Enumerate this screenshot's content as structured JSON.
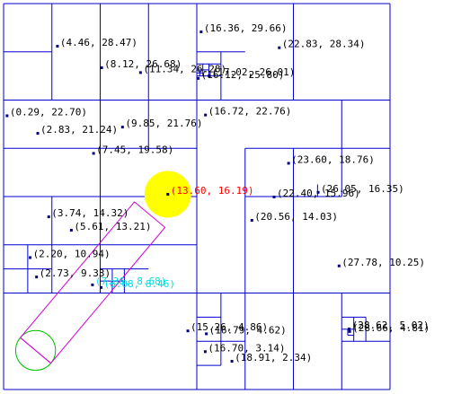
{
  "chart_data": {
    "type": "scatter",
    "xlim": [
      0,
      32
    ],
    "ylim": [
      0,
      32
    ],
    "grid": false,
    "colors": {
      "grid": "#0000d0",
      "point": "#000080",
      "label": "#000000",
      "highlight_label": "#ff0000",
      "highlight_fill": "#ffff00",
      "query_label": "#00e0e0",
      "path": "#d000d0",
      "circle": "#00c000"
    },
    "points": [
      {
        "x": 4.46,
        "y": 28.47,
        "label": "(4.46, 28.47)"
      },
      {
        "x": 16.36,
        "y": 29.66,
        "label": "(16.36, 29.66)"
      },
      {
        "x": 22.83,
        "y": 28.34,
        "label": "(22.83, 28.34)"
      },
      {
        "x": 8.12,
        "y": 26.68,
        "label": "(8.12, 26.68)"
      },
      {
        "x": 11.34,
        "y": 26.28,
        "label": "(11.34, 26.28)"
      },
      {
        "x": 17.02,
        "y": 26.01,
        "label": "(17.02, 26.01)"
      },
      {
        "x": 16.12,
        "y": 25.8,
        "label": "(16.12, 25.80)"
      },
      {
        "x": 0.29,
        "y": 22.7,
        "label": "(0.29, 22.70)"
      },
      {
        "x": 16.72,
        "y": 22.76,
        "label": "(16.72, 22.76)"
      },
      {
        "x": 2.83,
        "y": 21.24,
        "label": "(2.83, 21.24)"
      },
      {
        "x": 9.85,
        "y": 21.76,
        "label": "(9.85, 21.76)"
      },
      {
        "x": 7.45,
        "y": 19.58,
        "label": "(7.45, 19.58)"
      },
      {
        "x": 23.6,
        "y": 18.76,
        "label": "(23.60, 18.76)"
      },
      {
        "x": 26.05,
        "y": 16.35,
        "label": "(26.05, 16.35)"
      },
      {
        "x": 22.4,
        "y": 15.96,
        "label": "(22.40, 15.96)"
      },
      {
        "x": 3.74,
        "y": 14.32,
        "label": "(3.74, 14.32)"
      },
      {
        "x": 20.56,
        "y": 14.03,
        "label": "(20.56, 14.03)"
      },
      {
        "x": 5.61,
        "y": 13.21,
        "label": "(5.61, 13.21)"
      },
      {
        "x": 2.2,
        "y": 10.94,
        "label": "(2.20, 10.94)"
      },
      {
        "x": 27.78,
        "y": 10.25,
        "label": "(27.78, 10.25)"
      },
      {
        "x": 2.73,
        "y": 9.33,
        "label": "(2.73, 9.33)"
      },
      {
        "x": 15.26,
        "y": 4.86,
        "label": "(15.26, 4.86)"
      },
      {
        "x": 16.79,
        "y": 4.62,
        "label": "(16.79, 4.62)"
      },
      {
        "x": 28.62,
        "y": 5.02,
        "label": "(28.62, 5.02)"
      },
      {
        "x": 28.66,
        "y": 4.81,
        "label": "(28.66, 4.81)"
      },
      {
        "x": 16.7,
        "y": 3.14,
        "label": "(16.70, 3.14)"
      },
      {
        "x": 18.91,
        "y": 2.34,
        "label": "(18.91, 2.34)"
      }
    ],
    "highlight": {
      "x": 13.6,
      "y": 16.19,
      "label": "(13.60, 16.19)"
    },
    "query_points": [
      {
        "x": 7.36,
        "y": 8.68,
        "label": "(7.36, 8.68)"
      },
      {
        "x": 8.08,
        "y": 8.46,
        "label": "(8.08, 8.46)"
      }
    ],
    "query_circle": {
      "x": 2.65,
      "y": 3.24,
      "r": 1.65
    },
    "query_path": {
      "from": {
        "x": 2.65,
        "y": 3.24
      },
      "to": {
        "x": 12.1,
        "y": 14.5
      },
      "half_width": 1.65
    },
    "partition_lines": [
      {
        "x1": 0,
        "y1": 0,
        "x2": 32,
        "y2": 0
      },
      {
        "x1": 0,
        "y1": 32,
        "x2": 32,
        "y2": 32
      },
      {
        "x1": 0,
        "y1": 0,
        "x2": 0,
        "y2": 32
      },
      {
        "x1": 32,
        "y1": 0,
        "x2": 32,
        "y2": 32
      },
      {
        "x1": 0,
        "y1": 8,
        "x2": 32,
        "y2": 8
      },
      {
        "x1": 0,
        "y1": 16,
        "x2": 16,
        "y2": 16
      },
      {
        "x1": 0,
        "y1": 24,
        "x2": 32,
        "y2": 24
      },
      {
        "x1": 16,
        "y1": 0,
        "x2": 16,
        "y2": 32
      },
      {
        "x1": 8,
        "y1": 8,
        "x2": 8,
        "y2": 32
      },
      {
        "x1": 24,
        "y1": 24,
        "x2": 24,
        "y2": 32
      },
      {
        "x1": 24,
        "y1": 0,
        "x2": 24,
        "y2": 8
      },
      {
        "x1": 0,
        "y1": 20,
        "x2": 8,
        "y2": 20
      },
      {
        "x1": 4,
        "y1": 24,
        "x2": 4,
        "y2": 32
      },
      {
        "x1": 0,
        "y1": 28,
        "x2": 4,
        "y2": 28
      },
      {
        "x1": 12,
        "y1": 24,
        "x2": 12,
        "y2": 32
      },
      {
        "x1": 12,
        "y1": 20,
        "x2": 12,
        "y2": 24
      },
      {
        "x1": 8,
        "y1": 20,
        "x2": 16,
        "y2": 20
      },
      {
        "x1": 0,
        "y1": 12,
        "x2": 16,
        "y2": 12
      },
      {
        "x1": 4,
        "y1": 8,
        "x2": 4,
        "y2": 16
      },
      {
        "x1": 0,
        "y1": 10,
        "x2": 4,
        "y2": 10
      },
      {
        "x1": 2,
        "y1": 8,
        "x2": 2,
        "y2": 12
      },
      {
        "x1": 8,
        "y1": 10,
        "x2": 12,
        "y2": 10
      },
      {
        "x1": 10,
        "y1": 8,
        "x2": 10,
        "y2": 10
      },
      {
        "x1": 9,
        "y1": 8,
        "x2": 9,
        "y2": 10
      },
      {
        "x1": 8,
        "y1": 9,
        "x2": 10,
        "y2": 9
      },
      {
        "x1": 16,
        "y1": 28,
        "x2": 20,
        "y2": 28
      },
      {
        "x1": 18,
        "y1": 24,
        "x2": 18,
        "y2": 28
      },
      {
        "x1": 16,
        "y1": 26,
        "x2": 18,
        "y2": 26
      },
      {
        "x1": 17,
        "y1": 26,
        "x2": 17,
        "y2": 27
      },
      {
        "x1": 16,
        "y1": 27,
        "x2": 18,
        "y2": 27
      },
      {
        "x1": 16.5,
        "y1": 26,
        "x2": 16.5,
        "y2": 27
      },
      {
        "x1": 16,
        "y1": 26.5,
        "x2": 17,
        "y2": 26.5
      },
      {
        "x1": 16,
        "y1": 26.25,
        "x2": 16.5,
        "y2": 26.25
      },
      {
        "x1": 16.25,
        "y1": 26,
        "x2": 16.25,
        "y2": 26.5
      },
      {
        "x1": 20,
        "y1": 8,
        "x2": 20,
        "y2": 16
      },
      {
        "x1": 24,
        "y1": 8,
        "x2": 24,
        "y2": 20
      },
      {
        "x1": 20,
        "y1": 20,
        "x2": 32,
        "y2": 20
      },
      {
        "x1": 20,
        "y1": 16,
        "x2": 24,
        "y2": 16
      },
      {
        "x1": 20,
        "y1": 16,
        "x2": 20,
        "y2": 20
      },
      {
        "x1": 28,
        "y1": 16,
        "x2": 28,
        "y2": 24
      },
      {
        "x1": 24,
        "y1": 16,
        "x2": 28,
        "y2": 16
      },
      {
        "x1": 26,
        "y1": 16,
        "x2": 26,
        "y2": 17
      },
      {
        "x1": 16,
        "y1": 4,
        "x2": 20,
        "y2": 4
      },
      {
        "x1": 18,
        "y1": 2,
        "x2": 18,
        "y2": 8
      },
      {
        "x1": 16,
        "y1": 2,
        "x2": 18,
        "y2": 2
      },
      {
        "x1": 16,
        "y1": 6,
        "x2": 18,
        "y2": 6
      },
      {
        "x1": 20,
        "y1": 0,
        "x2": 20,
        "y2": 8
      },
      {
        "x1": 28,
        "y1": 0,
        "x2": 28,
        "y2": 8
      },
      {
        "x1": 28,
        "y1": 4,
        "x2": 32,
        "y2": 4
      },
      {
        "x1": 30,
        "y1": 4,
        "x2": 30,
        "y2": 6
      },
      {
        "x1": 28,
        "y1": 6,
        "x2": 30,
        "y2": 6
      },
      {
        "x1": 29,
        "y1": 4,
        "x2": 29,
        "y2": 6
      },
      {
        "x1": 28,
        "y1": 5,
        "x2": 29,
        "y2": 5
      },
      {
        "x1": 28.5,
        "y1": 4.5,
        "x2": 29,
        "y2": 4.5
      },
      {
        "x1": 28.5,
        "y1": 4.5,
        "x2": 28.5,
        "y2": 5
      }
    ]
  }
}
